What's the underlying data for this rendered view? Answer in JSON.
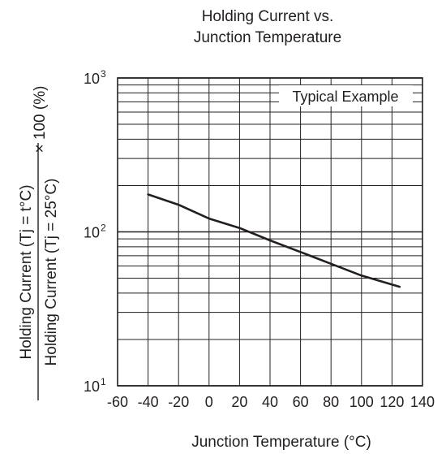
{
  "chart_data": {
    "type": "line",
    "title_lines": [
      "Holding Current vs.",
      "Junction Temperature"
    ],
    "xlabel": "Junction Temperature  (°C)",
    "ylabel_numerator": "Holding Current (Tj = t°C)",
    "ylabel_denominator": "Holding Current (Tj = 25°C)",
    "ylabel_suffix": "× 100 (%)",
    "annotation": "Typical Example",
    "xlim": [
      -60,
      140
    ],
    "x_ticks": [
      -60,
      -40,
      -20,
      0,
      20,
      40,
      60,
      80,
      100,
      120,
      140
    ],
    "ylim": [
      10,
      1000
    ],
    "y_scale": "log",
    "y_tick_labels": [
      {
        "value": 10,
        "base": "10",
        "exp": "1"
      },
      {
        "value": 100,
        "base": "10",
        "exp": "2"
      },
      {
        "value": 1000,
        "base": "10",
        "exp": "3"
      }
    ],
    "grid": true,
    "series": [
      {
        "x": [
          -40,
          -20,
          0,
          20,
          40,
          60,
          80,
          100,
          125
        ],
        "y": [
          175,
          150,
          122,
          106,
          88,
          74,
          62,
          52,
          44
        ]
      }
    ]
  }
}
